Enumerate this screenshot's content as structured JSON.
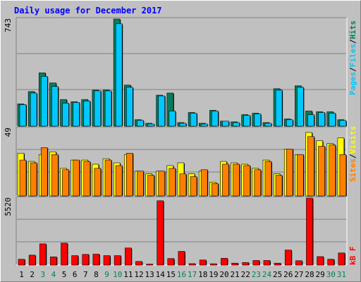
{
  "title": "Daily usage for December 2017",
  "colors": {
    "hits": "#00805c",
    "files": "#00c8ff",
    "pages": "#00c8ff",
    "visits": "#ffff00",
    "sites": "#ff8000",
    "kbytes": "#ff0000",
    "weekday": "#000000",
    "weekend": "#00805c"
  },
  "chart_data": [
    {
      "type": "bar",
      "panel": "hits-files-pages",
      "ymax_label": "743",
      "ylim": [
        0,
        743
      ],
      "legend": [
        {
          "name": "Pages",
          "color": "#00c8ff"
        },
        {
          "name": "/",
          "color": "#000000"
        },
        {
          "name": "Files",
          "color": "#00c8ff"
        },
        {
          "name": "/",
          "color": "#000000"
        },
        {
          "name": "Hits",
          "color": "#00805c"
        }
      ],
      "categories": [
        "1",
        "2",
        "3",
        "4",
        "5",
        "6",
        "7",
        "8",
        "9",
        "10",
        "11",
        "12",
        "13",
        "14",
        "15",
        "16",
        "17",
        "18",
        "19",
        "20",
        "21",
        "22",
        "23",
        "24",
        "25",
        "26",
        "27",
        "28",
        "29",
        "30",
        "31"
      ],
      "series": [
        {
          "name": "Hits",
          "values": [
            155,
            240,
            370,
            300,
            185,
            170,
            185,
            250,
            250,
            743,
            285,
            45,
            20,
            215,
            230,
            25,
            95,
            20,
            110,
            35,
            30,
            80,
            90,
            25,
            260,
            50,
            280,
            105,
            100,
            100,
            45
          ]
        },
        {
          "name": "Files",
          "values": [
            150,
            230,
            345,
            275,
            160,
            165,
            175,
            245,
            245,
            710,
            270,
            40,
            15,
            210,
            105,
            20,
            90,
            15,
            105,
            35,
            25,
            75,
            85,
            20,
            250,
            45,
            270,
            80,
            95,
            90,
            40
          ]
        }
      ]
    },
    {
      "type": "bar",
      "panel": "visits-sites",
      "ymax_label": "49",
      "ylim": [
        0,
        49
      ],
      "legend": [
        {
          "name": "Sites",
          "color": "#ff8000"
        },
        {
          "name": "/",
          "color": "#000000"
        },
        {
          "name": "Visits",
          "color": "#ffff00"
        }
      ],
      "categories": [
        "1",
        "2",
        "3",
        "4",
        "5",
        "6",
        "7",
        "8",
        "9",
        "10",
        "11",
        "12",
        "13",
        "14",
        "15",
        "16",
        "17",
        "18",
        "19",
        "20",
        "21",
        "22",
        "23",
        "24",
        "25",
        "26",
        "27",
        "28",
        "29",
        "30",
        "31"
      ],
      "series": [
        {
          "name": "Visits",
          "values": [
            31,
            25,
            30,
            32,
            20,
            26,
            26,
            23,
            27,
            24,
            30,
            18,
            16,
            18,
            22,
            24,
            16,
            18,
            10,
            25,
            24,
            23,
            20,
            26,
            16,
            34,
            30,
            46,
            40,
            38,
            42
          ]
        },
        {
          "name": "Sites",
          "values": [
            26,
            24,
            35,
            30,
            19,
            26,
            25,
            20,
            26,
            22,
            31,
            18,
            15,
            18,
            20,
            16,
            14,
            19,
            9,
            23,
            23,
            22,
            19,
            25,
            15,
            34,
            30,
            43,
            36,
            37,
            30
          ]
        }
      ]
    },
    {
      "type": "bar",
      "panel": "kbytes",
      "ymax_label": "5520",
      "ylim": [
        0,
        5520
      ],
      "legend": [
        {
          "name": "kB F",
          "color": "#ff0000"
        }
      ],
      "categories": [
        "1",
        "2",
        "3",
        "4",
        "5",
        "6",
        "7",
        "8",
        "9",
        "10",
        "11",
        "12",
        "13",
        "14",
        "15",
        "16",
        "17",
        "18",
        "19",
        "20",
        "21",
        "22",
        "23",
        "24",
        "25",
        "26",
        "27",
        "28",
        "29",
        "30",
        "31"
      ],
      "series": [
        {
          "name": "kB F",
          "values": [
            480,
            820,
            1750,
            680,
            1810,
            780,
            880,
            900,
            780,
            780,
            1410,
            300,
            80,
            5300,
            540,
            1130,
            120,
            420,
            110,
            560,
            160,
            210,
            380,
            380,
            160,
            1240,
            360,
            5520,
            700,
            480,
            1000
          ]
        }
      ]
    }
  ],
  "day_colors": [
    "weekday",
    "weekday",
    "weekend",
    "weekend",
    "weekday",
    "weekday",
    "weekday",
    "weekday",
    "weekend",
    "weekend",
    "weekday",
    "weekday",
    "weekday",
    "weekday",
    "weekday",
    "weekend",
    "weekend",
    "weekday",
    "weekday",
    "weekday",
    "weekday",
    "weekday",
    "weekend",
    "weekend",
    "weekday",
    "weekday",
    "weekday",
    "weekday",
    "weekday",
    "weekend",
    "weekend"
  ]
}
